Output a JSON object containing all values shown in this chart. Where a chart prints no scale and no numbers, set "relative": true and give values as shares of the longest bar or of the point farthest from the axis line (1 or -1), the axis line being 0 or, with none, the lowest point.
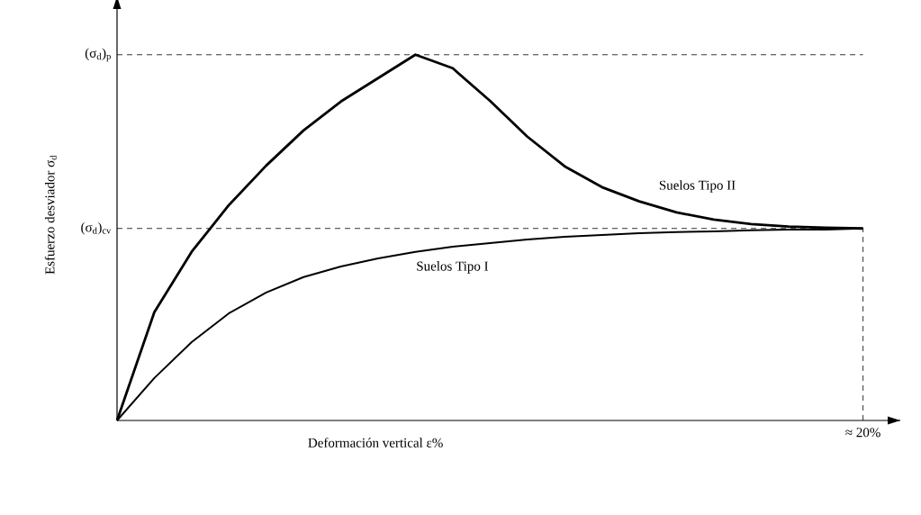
{
  "chart_data": {
    "type": "line",
    "relative": true,
    "xlabel": "Deformación vertical  ε%",
    "ylabel": "Esfuerzo desviador  σ$_{d}$",
    "categories": [
      null,
      null,
      null,
      null,
      null,
      null,
      null,
      null,
      null,
      null,
      null,
      null,
      null,
      null,
      null,
      null,
      null,
      null,
      null,
      null,
      null
    ],
    "series": [
      {
        "name": "Suelos Tipo II",
        "color": "#000000",
        "values": [
          0,
          0.296,
          0.461,
          0.589,
          0.697,
          0.793,
          0.872,
          0.936,
          1,
          0.963,
          0.874,
          0.776,
          0.695,
          0.638,
          0.599,
          0.569,
          0.549,
          0.537,
          0.53,
          0.527,
          0.525
        ]
      },
      {
        "name": "Suelos Tipo I",
        "color": "#000000",
        "values": [
          0,
          0.116,
          0.214,
          0.293,
          0.35,
          0.392,
          0.421,
          0.443,
          0.461,
          0.475,
          0.485,
          0.495,
          0.502,
          0.507,
          0.512,
          0.515,
          0.517,
          0.52,
          0.522,
          0.522,
          0.525
        ]
      }
    ],
    "ref_lines": [
      {
        "axis": "y",
        "value": 1,
        "label": "(σ$_{d}$)$_{p}$",
        "line_style": "dashed"
      },
      {
        "axis": "y",
        "value": 0.525,
        "label": "(σ$_{d}$)$_{cv}$",
        "line_style": "dashed"
      },
      {
        "axis": "x",
        "label": "≈ 20%",
        "line_style": "dashed"
      }
    ],
    "marker": "none",
    "line_style": "solid",
    "legend": false
  }
}
